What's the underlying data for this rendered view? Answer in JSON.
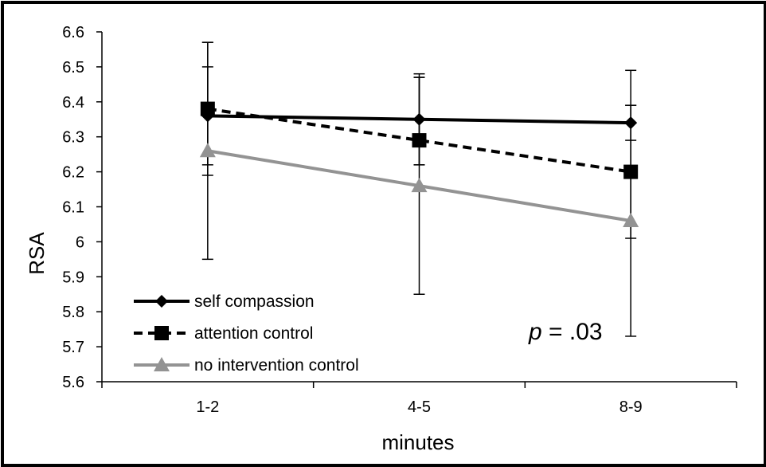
{
  "chart_data": {
    "type": "line",
    "xlabel": "minutes",
    "ylabel": "RSA",
    "categories": [
      "1-2",
      "4-5",
      "8-9"
    ],
    "ylim": [
      5.6,
      6.6
    ],
    "yticks": [
      "5.6",
      "5.7",
      "5.8",
      "5.9",
      "6",
      "6.1",
      "6.2",
      "6.3",
      "6.4",
      "6.5",
      "6.6"
    ],
    "grid": false,
    "legend_position": "bottom-left",
    "annotation": {
      "italic": "p",
      "rest": " = .03"
    },
    "series": [
      {
        "name": "self compassion",
        "values": [
          6.36,
          6.35,
          6.34
        ],
        "err_upper": [
          6.5,
          6.48,
          6.39
        ],
        "err_lower": [
          6.22,
          6.22,
          6.29
        ],
        "color": "#000000",
        "dash": "solid",
        "marker": "diamond"
      },
      {
        "name": "attention control",
        "values": [
          6.38,
          6.29,
          6.2
        ],
        "err_upper": [
          6.57,
          6.47,
          6.39
        ],
        "err_lower": [
          6.19,
          6.22,
          6.01
        ],
        "color": "#000000",
        "dash": "dashed",
        "marker": "square"
      },
      {
        "name": "no intervention control",
        "values": [
          6.26,
          6.16,
          6.06
        ],
        "err_upper": [
          6.57,
          6.47,
          6.49
        ],
        "err_lower": [
          5.95,
          5.85,
          5.73
        ],
        "color": "#939393",
        "dash": "solid",
        "marker": "triangle"
      }
    ]
  }
}
